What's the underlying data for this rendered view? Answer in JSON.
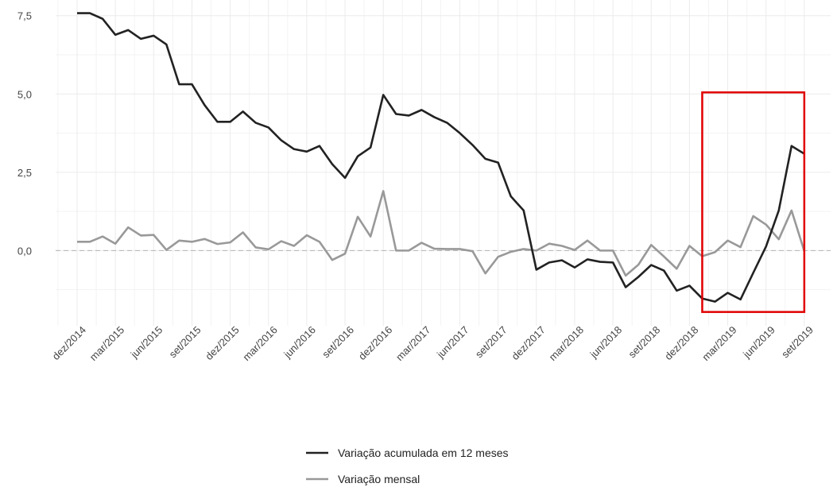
{
  "chart_data": {
    "type": "line",
    "categories": [
      "dez/2014",
      null,
      null,
      "mar/2015",
      null,
      null,
      "jun/2015",
      null,
      null,
      "set/2015",
      null,
      null,
      "dez/2015",
      null,
      null,
      "mar/2016",
      null,
      null,
      "jun/2016",
      null,
      null,
      "set/2016",
      null,
      null,
      "dez/2016",
      null,
      null,
      "mar/2017",
      null,
      null,
      "jun/2017",
      null,
      null,
      "set/2017",
      null,
      null,
      "dez/2017",
      null,
      null,
      "mar/2018",
      null,
      null,
      "jun/2018",
      null,
      null,
      "set/2018",
      null,
      null,
      "dez/2018",
      null,
      null,
      "mar/2019",
      null,
      null,
      "jun/2019",
      null,
      null,
      "set/2019"
    ],
    "series": [
      {
        "name": "Variação acumulada em 12 meses",
        "color": "#222222",
        "values": [
          7.58,
          7.58,
          7.4,
          6.89,
          7.04,
          6.76,
          6.86,
          6.58,
          5.31,
          5.31,
          4.64,
          4.11,
          4.11,
          4.44,
          4.08,
          3.93,
          3.52,
          3.24,
          3.16,
          3.34,
          2.76,
          2.32,
          3.01,
          3.29,
          4.97,
          4.36,
          4.31,
          4.49,
          4.26,
          4.08,
          3.75,
          3.37,
          2.93,
          2.81,
          1.73,
          1.28,
          -0.61,
          -0.38,
          -0.31,
          -0.54,
          -0.28,
          -0.36,
          -0.38,
          -1.17,
          -0.84,
          -0.46,
          -0.64,
          -1.28,
          -1.12,
          -1.53,
          -1.63,
          -1.35,
          -1.56,
          -0.71,
          0.13,
          1.28,
          3.34,
          3.09
        ]
      },
      {
        "name": "Variação mensal",
        "color": "#999999",
        "values": [
          0.28,
          0.28,
          0.45,
          0.22,
          0.74,
          0.48,
          0.5,
          0.02,
          0.32,
          0.28,
          0.37,
          0.21,
          0.26,
          0.58,
          0.1,
          0.04,
          0.3,
          0.15,
          0.49,
          0.28,
          -0.3,
          -0.1,
          1.08,
          0.45,
          1.9,
          0.0,
          0.0,
          0.25,
          0.06,
          0.05,
          0.05,
          -0.02,
          -0.73,
          -0.2,
          -0.04,
          0.05,
          0.0,
          0.22,
          0.15,
          0.02,
          0.32,
          0.0,
          0.0,
          -0.8,
          -0.45,
          0.18,
          -0.19,
          -0.58,
          0.15,
          -0.18,
          -0.05,
          0.32,
          0.11,
          1.1,
          0.83,
          0.36,
          1.28,
          -0.02
        ]
      }
    ],
    "ylim": [
      -2.4,
      8.0
    ],
    "yticks": [
      {
        "value": 0,
        "label": "0,0"
      },
      {
        "value": 2.5,
        "label": "2,5"
      },
      {
        "value": 5,
        "label": "5,0"
      },
      {
        "value": 7.5,
        "label": "7,5"
      }
    ],
    "grid": true,
    "reference_line": 0,
    "highlight": {
      "x": [
        49,
        57
      ],
      "y": [
        -1.96,
        5.05
      ],
      "color": "#e00000"
    },
    "legend": "bottom"
  }
}
